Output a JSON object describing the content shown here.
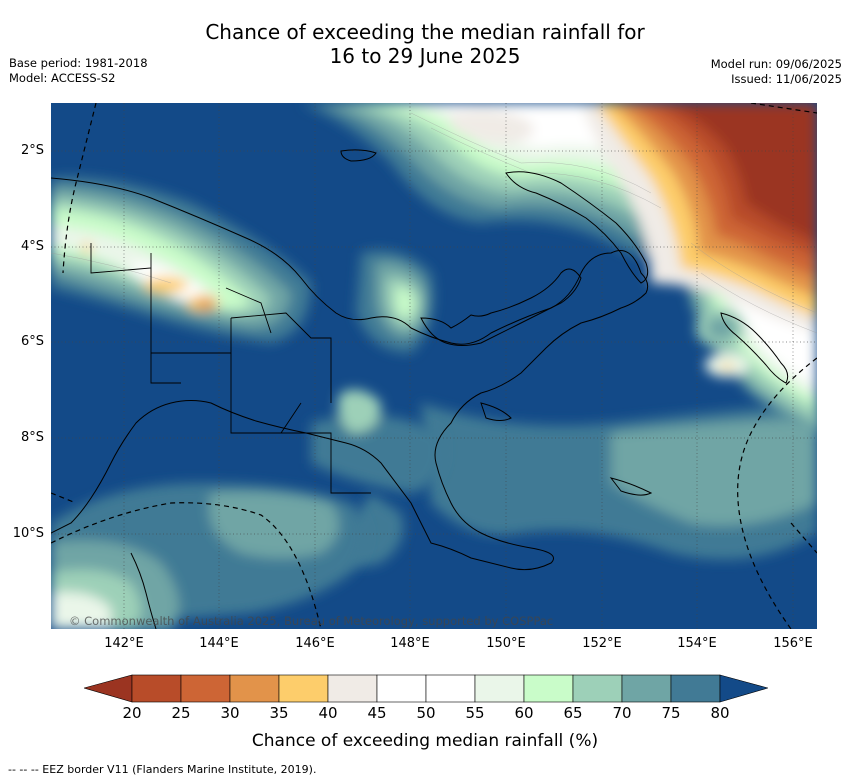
{
  "title": {
    "line1": "Chance of exceeding the median rainfall for",
    "line2": "16 to 29 June 2025"
  },
  "meta": {
    "base_period": "Base period: 1981-2018",
    "model": "Model: ACCESS-S2",
    "model_run": "Model run: 09/06/2025",
    "issued": "Issued: 11/06/2025"
  },
  "map": {
    "copyright": "© Commonwealth of Australia 2025, Bureau of Meteorology, supported by COSPPac",
    "x_ticks": [
      "142°E",
      "144°E",
      "146°E",
      "148°E",
      "150°E",
      "152°E",
      "154°E",
      "156°E"
    ],
    "y_ticks": [
      "2°S",
      "4°S",
      "6°S",
      "8°S",
      "10°S"
    ],
    "lon_range": [
      140.6,
      156.5
    ],
    "lat_range": [
      -12.0,
      -1.0
    ]
  },
  "colorbar": {
    "labels": [
      "20",
      "25",
      "30",
      "35",
      "40",
      "45",
      "50",
      "55",
      "60",
      "65",
      "70",
      "75",
      "80"
    ],
    "colors": {
      "below_20": "#9b3421",
      "c20_25": "#b84c29",
      "c25_30": "#cd6535",
      "c30_35": "#e2934a",
      "c35_40": "#fdcd6b",
      "c40_45": "#f0ebe6",
      "c45_50": "#ffffff",
      "c50_55": "#ffffff",
      "c55_60": "#eaf6e9",
      "c60_65": "#c9fcc9",
      "c65_70": "#9dd0b8",
      "c70_75": "#6fa5a5",
      "c75_80": "#417a95",
      "above_80": "#134a88"
    },
    "title": "Chance of exceeding median rainfall (%)"
  },
  "legend_note": "--  --  -- EEZ border V11 (Flanders Marine Institute, 2019)."
}
